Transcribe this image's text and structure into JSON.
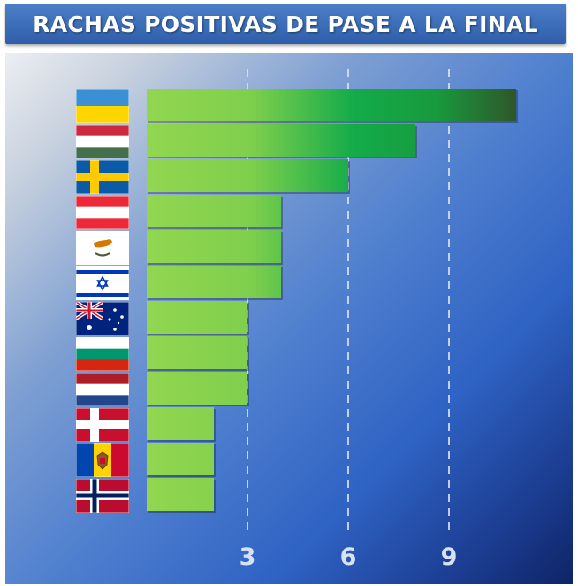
{
  "title": "RACHAS POSITIVAS DE PASE A LA FINAL",
  "chart_data": {
    "type": "bar",
    "orientation": "horizontal",
    "categories": [
      "Ukraine",
      "Hungary",
      "Sweden",
      "Austria",
      "Cyprus",
      "Israel",
      "Australia",
      "Bulgaria",
      "Netherlands",
      "Denmark",
      "Moldova",
      "Norway"
    ],
    "values": [
      11,
      8,
      6,
      4,
      4,
      4,
      3,
      3,
      3,
      2,
      2,
      2
    ],
    "xticks": [
      "3",
      "6",
      "9"
    ],
    "xtick_values": [
      3,
      6,
      9
    ],
    "xlim": [
      0,
      12
    ],
    "grid": "dashed vertical",
    "title": "RACHAS POSITIVAS DE PASE A LA FINAL"
  },
  "flags": [
    {
      "country": "Ukraine",
      "icon": "ukraine-flag-icon",
      "stripes": [
        "#3b8fd4",
        "#ffd500"
      ]
    },
    {
      "country": "Hungary",
      "icon": "hungary-flag-icon",
      "stripes": [
        "#cd2a3e",
        "#ffffff",
        "#436f4d"
      ]
    },
    {
      "country": "Sweden",
      "icon": "sweden-flag-icon",
      "base": "#0a5aa8",
      "cross": "#fecb00"
    },
    {
      "country": "Austria",
      "icon": "austria-flag-icon",
      "stripes": [
        "#ed2939",
        "#ffffff",
        "#ed2939"
      ]
    },
    {
      "country": "Cyprus",
      "icon": "cyprus-flag-icon",
      "base": "#ffffff",
      "emblem": "#d57800",
      "branch": "#4e5b31"
    },
    {
      "country": "Israel",
      "icon": "israel-flag-icon",
      "base": "#ffffff",
      "symbol": "#0038b8"
    },
    {
      "country": "Australia",
      "icon": "australia-flag-icon",
      "base": "#00247d",
      "cross": "#cf142b"
    },
    {
      "country": "Bulgaria",
      "icon": "bulgaria-flag-icon",
      "stripes": [
        "#ffffff",
        "#00966e",
        "#d62612"
      ]
    },
    {
      "country": "Netherlands",
      "icon": "netherlands-flag-icon",
      "stripes": [
        "#ae1c28",
        "#ffffff",
        "#21468b"
      ]
    },
    {
      "country": "Denmark",
      "icon": "denmark-flag-icon",
      "base": "#c8102e",
      "cross": "#ffffff"
    },
    {
      "country": "Moldova",
      "icon": "moldova-flag-icon",
      "stripes": [
        "#0046ae",
        "#ffd200",
        "#cc092f"
      ]
    },
    {
      "country": "Norway",
      "icon": "norway-flag-icon",
      "base": "#ba0c2f",
      "cross": "#ffffff",
      "inner": "#00205b"
    }
  ],
  "colors": {
    "bar_light": "#8fd24e",
    "bar_mid": "#1faa48",
    "bar_dark": "#2d5c2a",
    "grid": "#dbe4f2"
  }
}
